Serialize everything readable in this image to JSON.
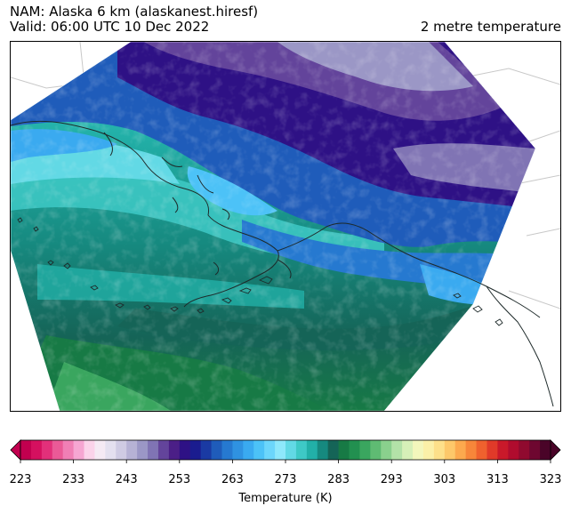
{
  "header": {
    "title_line1": "NAM: Alaska 6 km (alaskanest.hiresf)",
    "title_line2": "Valid: 06:00 UTC 10 Dec 2022",
    "variable": "2 metre temperature"
  },
  "colorbar": {
    "label": "Temperature (K)",
    "min": 223,
    "max": 323,
    "ticks": [
      "223",
      "233",
      "243",
      "253",
      "263",
      "273",
      "283",
      "293",
      "303",
      "313",
      "323"
    ],
    "colors": [
      "#c2004f",
      "#d5105f",
      "#e2307a",
      "#ea5a97",
      "#f07fb5",
      "#f6a6d2",
      "#fbd3ea",
      "#f5eaf4",
      "#e4e0ef",
      "#cfcbe3",
      "#b6b2d5",
      "#9b97c6",
      "#8074b4",
      "#63449b",
      "#4b1f87",
      "#2e1185",
      "#1a1c8f",
      "#1a3aa3",
      "#1f5cba",
      "#2679d0",
      "#2f92e1",
      "#3aaaf0",
      "#4cc2f7",
      "#6cd6fb",
      "#8ee8fb",
      "#62d9e5",
      "#3ec9c6",
      "#22b0a8",
      "#16897f",
      "#156457",
      "#177a45",
      "#229050",
      "#3aa65f",
      "#5fbb73",
      "#8ad08d",
      "#b3e2a8",
      "#d6f0b8",
      "#f3f7bc",
      "#fbf0a8",
      "#fde08a",
      "#fdc86a",
      "#fca94e",
      "#f7863a",
      "#ef612e",
      "#e03a29",
      "#c9192a",
      "#b00c2e",
      "#900a2f",
      "#6e0730",
      "#4a0428"
    ]
  },
  "map": {
    "region": "Alaska"
  }
}
